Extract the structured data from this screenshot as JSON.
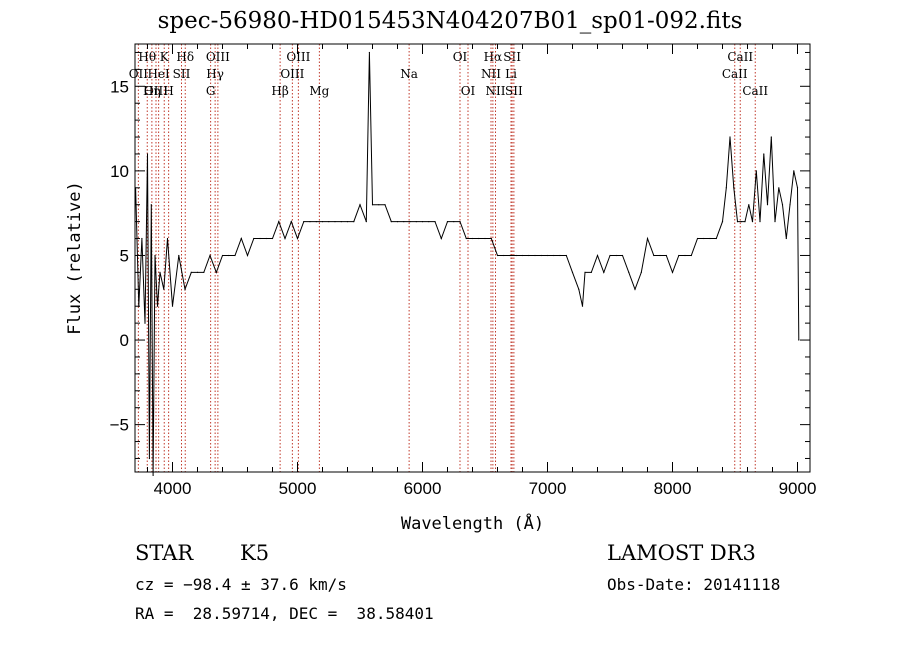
{
  "chart_data": {
    "type": "line",
    "title": "spec-56980-HD015453N404207B01_sp01-092.fits",
    "xlabel": "Wavelength (Å)",
    "ylabel": "Flux (relative)",
    "xlim": [
      3700,
      9100
    ],
    "ylim": [
      -7.8,
      17.5
    ],
    "xticks": [
      4000,
      5000,
      6000,
      7000,
      8000,
      9000
    ],
    "xtick_labels": [
      "4000",
      "5000",
      "6000",
      "7000",
      "8000",
      "9000"
    ],
    "yticks": [
      -5,
      0,
      5,
      10,
      15
    ],
    "ytick_labels": [
      "−5",
      "0",
      "5",
      "10",
      "15"
    ],
    "series": [
      {
        "name": "flux",
        "x": [
          3705,
          3730,
          3755,
          3780,
          3800,
          3815,
          3830,
          3845,
          3860,
          3880,
          3900,
          3930,
          3960,
          4000,
          4050,
          4100,
          4150,
          4200,
          4250,
          4300,
          4350,
          4400,
          4450,
          4500,
          4550,
          4600,
          4650,
          4700,
          4750,
          4800,
          4850,
          4900,
          4950,
          5000,
          5050,
          5100,
          5150,
          5200,
          5250,
          5300,
          5350,
          5400,
          5450,
          5500,
          5550,
          5575,
          5600,
          5650,
          5700,
          5750,
          5800,
          5850,
          5900,
          5950,
          6000,
          6050,
          6100,
          6150,
          6200,
          6250,
          6300,
          6350,
          6400,
          6450,
          6500,
          6550,
          6600,
          6650,
          6700,
          6750,
          6800,
          6850,
          6900,
          6950,
          7000,
          7050,
          7100,
          7150,
          7200,
          7250,
          7280,
          7300,
          7350,
          7400,
          7450,
          7500,
          7550,
          7600,
          7650,
          7700,
          7750,
          7800,
          7850,
          7900,
          7950,
          8000,
          8050,
          8100,
          8150,
          8200,
          8250,
          8300,
          8350,
          8400,
          8430,
          8460,
          8490,
          8520,
          8550,
          8580,
          8610,
          8640,
          8670,
          8700,
          8730,
          8760,
          8790,
          8820,
          8850,
          8880,
          8910,
          8940,
          8970,
          9000,
          9010
        ],
        "y": [
          9,
          2,
          6,
          1,
          11,
          -7,
          8,
          -8,
          5,
          2,
          4,
          3,
          6,
          2,
          5,
          3,
          4,
          4,
          4,
          5,
          4,
          5,
          5,
          5,
          6,
          5,
          6,
          6,
          6,
          6,
          7,
          6,
          7,
          6,
          7,
          7,
          7,
          7,
          7,
          7,
          7,
          7,
          7,
          8,
          7,
          17,
          8,
          8,
          8,
          7,
          7,
          7,
          7,
          7,
          7,
          7,
          7,
          6,
          7,
          7,
          7,
          6,
          6,
          6,
          6,
          6,
          5,
          5,
          5,
          5,
          5,
          5,
          5,
          5,
          5,
          5,
          5,
          5,
          4,
          3,
          2,
          4,
          4,
          5,
          4,
          5,
          5,
          5,
          4,
          3,
          4,
          6,
          5,
          5,
          5,
          4,
          5,
          5,
          5,
          6,
          6,
          6,
          6,
          7,
          9,
          12,
          9,
          7,
          7,
          7,
          8,
          7,
          10,
          7,
          11,
          8,
          12,
          7,
          9,
          8,
          6,
          8,
          10,
          9,
          0
        ]
      }
    ],
    "lines": [
      {
        "label": "Hθ",
        "wavelength": 3798,
        "row": 1
      },
      {
        "label": "OII",
        "wavelength": 3727,
        "row": 2
      },
      {
        "label": "OIII",
        "wavelength": 3868,
        "row": 3
      },
      {
        "label": "K",
        "wavelength": 3934,
        "row": 1
      },
      {
        "label": "HeI",
        "wavelength": 3889,
        "row": 2
      },
      {
        "label": "Hη",
        "wavelength": 3835,
        "row": 3
      },
      {
        "label": "Hδ",
        "wavelength": 4102,
        "row": 1
      },
      {
        "label": "SII",
        "wavelength": 4072,
        "row": 2
      },
      {
        "label": "H",
        "wavelength": 3969,
        "row": 3
      },
      {
        "label": "OIII",
        "wavelength": 4363,
        "row": 1
      },
      {
        "label": "Hγ",
        "wavelength": 4341,
        "row": 2
      },
      {
        "label": "G",
        "wavelength": 4305,
        "row": 3
      },
      {
        "label": "OIII",
        "wavelength": 5007,
        "row": 1
      },
      {
        "label": "OIII",
        "wavelength": 4959,
        "row": 2
      },
      {
        "label": "Hβ",
        "wavelength": 4861,
        "row": 3
      },
      {
        "label": "Mg",
        "wavelength": 5175,
        "row": 3
      },
      {
        "label": "Na",
        "wavelength": 5893,
        "row": 2
      },
      {
        "label": "OI",
        "wavelength": 6300,
        "row": 1
      },
      {
        "label": "OI",
        "wavelength": 6364,
        "row": 3
      },
      {
        "label": "Hα",
        "wavelength": 6563,
        "row": 1
      },
      {
        "label": "SII",
        "wavelength": 6717,
        "row": 1
      },
      {
        "label": "NII",
        "wavelength": 6548,
        "row": 2
      },
      {
        "label": "Li",
        "wavelength": 6708,
        "row": 2
      },
      {
        "label": "NII",
        "wavelength": 6584,
        "row": 3
      },
      {
        "label": "SII",
        "wavelength": 6731,
        "row": 3
      },
      {
        "label": "CaII",
        "wavelength": 8542,
        "row": 1
      },
      {
        "label": "CaII",
        "wavelength": 8498,
        "row": 2
      },
      {
        "label": "CaII",
        "wavelength": 8662,
        "row": 3
      }
    ]
  },
  "info": {
    "class": "STAR",
    "subclass": "K5",
    "cz": "cz = −98.4 ± 37.6 km/s",
    "coords": "RA =  28.59714, DEC =  38.58401",
    "survey": "LAMOST DR3",
    "obs_date": "Obs-Date: 20141118"
  }
}
